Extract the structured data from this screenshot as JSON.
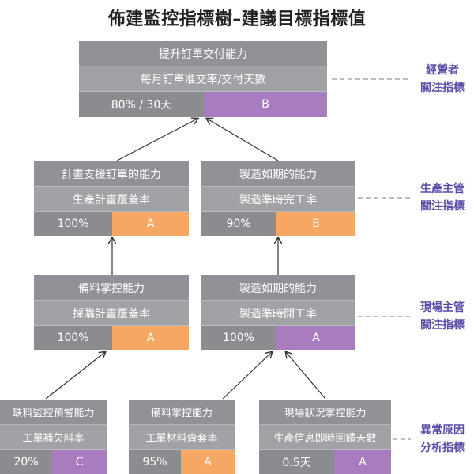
{
  "title": "佈建監控指標樹–建議目標指標值",
  "colors": {
    "A": "#f6a764",
    "B": "#a97cbf",
    "C": "#a97cbf"
  },
  "nodes": {
    "top": {
      "capability": "提升訂單交付能力",
      "metric": "每月訂單准交率/交付天數",
      "value": "80% / 30天",
      "grade": "B"
    },
    "m1": {
      "capability": "計畫支援訂單的能力",
      "metric": "生產計畫覆蓋率",
      "value": "100%",
      "grade": "A"
    },
    "m2": {
      "capability": "製造如期的能力",
      "metric": "製造準時完工率",
      "value": "90%",
      "grade": "B"
    },
    "s1": {
      "capability": "備料掌控能力",
      "metric": "採購計畫覆蓋率",
      "value": "100%",
      "grade": "A"
    },
    "s2": {
      "capability": "製造如期的能力",
      "metric": "製造準時開工率",
      "value": "100%",
      "grade": "A"
    },
    "b1": {
      "capability": "缺料監控預警能力",
      "metric": "工單補欠料率",
      "value": "20%",
      "grade": "C"
    },
    "b2": {
      "capability": "備料掌控能力",
      "metric": "工單材料齊套率",
      "value": "95%",
      "grade": "A"
    },
    "b3": {
      "capability": "現場狀況掌控能力",
      "metric": "生產信息即時回饋天數",
      "value": "0.5天",
      "grade": "A"
    }
  },
  "tiers": [
    {
      "line1": "經營者",
      "line2": "關注指標"
    },
    {
      "line1": "生產主管",
      "line2": "關注指標"
    },
    {
      "line1": "現場主管",
      "line2": "關注指標"
    },
    {
      "line1": "異常原因",
      "line2": "分析指標"
    }
  ]
}
